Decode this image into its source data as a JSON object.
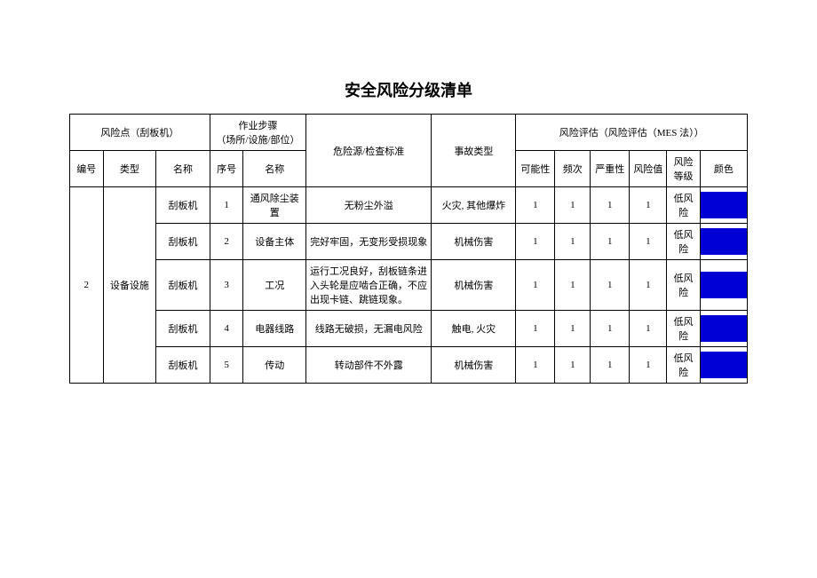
{
  "title": "安全风险分级清单",
  "headers": {
    "risk_point_group": "风险点（刮板机）",
    "step_group": "作业步骤\n（场所/设施/部位）",
    "source_std": "危险源/检查标准",
    "accident_type": "事故类型",
    "eval_group": "风险评估（风险评估（MES 法））",
    "id": "编号",
    "type": "类型",
    "name": "名称",
    "seq": "序号",
    "step_name": "名称",
    "possibility": "可能性",
    "frequency": "频次",
    "severity": "严重性",
    "risk_value": "风险值",
    "risk_level": "风险\n等级",
    "color": "颜色"
  },
  "group": {
    "id": "2",
    "type": "设备设施"
  },
  "rows": [
    {
      "name": "刮板机",
      "seq": "1",
      "step_name": "通风除尘装置",
      "source_std": "无粉尘外溢",
      "accident_type": "火灾, 其他爆炸",
      "possibility": "1",
      "frequency": "1",
      "severity": "1",
      "risk_value": "1",
      "risk_level": "低风险",
      "color": "#0000d6"
    },
    {
      "name": "刮板机",
      "seq": "2",
      "step_name": "设备主体",
      "source_std": "完好牢固，无变形受损现象",
      "accident_type": "机械伤害",
      "possibility": "1",
      "frequency": "1",
      "severity": "1",
      "risk_value": "1",
      "risk_level": "低风险",
      "color": "#0000d6"
    },
    {
      "name": "刮板机",
      "seq": "3",
      "step_name": "工况",
      "source_std": "运行工况良好，刮板链条进入头轮是应啮合正确，不应出现卡链、跳链现象。",
      "accident_type": "机械伤害",
      "possibility": "1",
      "frequency": "1",
      "severity": "1",
      "risk_value": "1",
      "risk_level": "低风险",
      "color": "#0000d6"
    },
    {
      "name": "刮板机",
      "seq": "4",
      "step_name": "电器线路",
      "source_std": "线路无破损，无漏电风险",
      "accident_type": "触电, 火灾",
      "possibility": "1",
      "frequency": "1",
      "severity": "1",
      "risk_value": "1",
      "risk_level": "低风险",
      "color": "#0000d6"
    },
    {
      "name": "刮板机",
      "seq": "5",
      "step_name": "传动",
      "source_std": "转动部件不外露",
      "accident_type": "机械伤害",
      "possibility": "1",
      "frequency": "1",
      "severity": "1",
      "risk_value": "1",
      "risk_level": "低风险",
      "color": "#0000d6"
    }
  ],
  "col_widths": {
    "id": "34",
    "type": "54",
    "name": "55",
    "seq": "34",
    "step_name": "64",
    "source_std": "128",
    "accident_type": "86",
    "possibility": "40",
    "frequency": "36",
    "severity": "40",
    "risk_value": "38",
    "risk_level": "34",
    "color": "48"
  }
}
